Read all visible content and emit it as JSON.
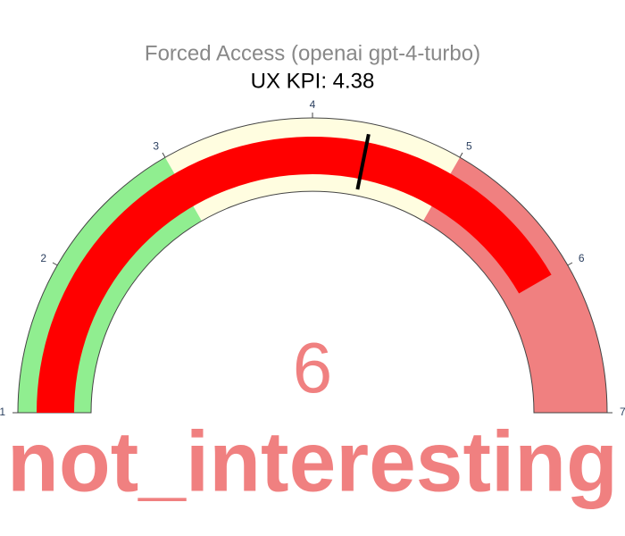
{
  "chart_data": {
    "type": "gauge",
    "title": "Forced Access (openai gpt-4-turbo)",
    "subtitle": "UX KPI: 4.38",
    "value": 6,
    "value_color": "#f08080",
    "label": "not_interesting",
    "range": [
      1,
      7
    ],
    "ticks": [
      1,
      2,
      3,
      4,
      5,
      6,
      7
    ],
    "bar_color": "#ff0000",
    "steps": [
      {
        "range": [
          1,
          3
        ],
        "color": "#90ee90"
      },
      {
        "range": [
          3,
          5
        ],
        "color": "#fffde0"
      },
      {
        "range": [
          5,
          7
        ],
        "color": "#f08080"
      }
    ],
    "threshold": 4.38,
    "threshold_color": "#000000"
  }
}
